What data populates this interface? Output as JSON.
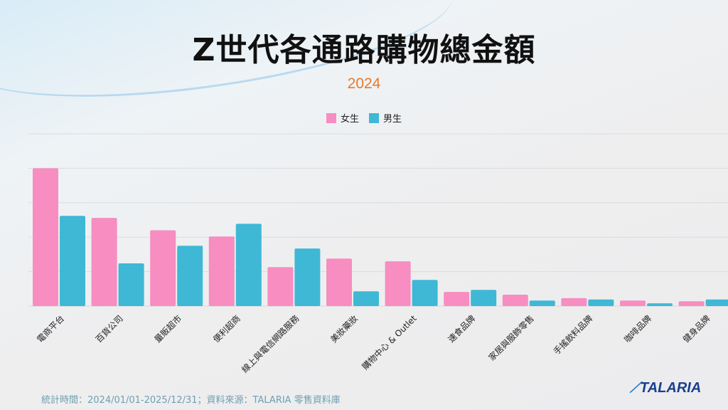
{
  "chart_data": {
    "type": "bar",
    "title": "Z世代各通路購物總金額",
    "subtitle": "2024",
    "categories": [
      "電商平台",
      "百貨公司",
      "量販超市",
      "便利超商",
      "線上與電信網路服務",
      "美妝藥妝",
      "購物中心 & Outlet",
      "速食品牌",
      "家居與服飾零售",
      "手搖飲料品牌",
      "咖啡品牌",
      "健身品牌"
    ],
    "series": [
      {
        "name": "女生",
        "color": "#f78dc1",
        "values": [
          4.0,
          2.56,
          2.2,
          2.02,
          1.13,
          1.38,
          1.3,
          0.41,
          0.33,
          0.23,
          0.16,
          0.14
        ]
      },
      {
        "name": "男生",
        "color": "#3fb8d6",
        "values": [
          2.62,
          1.24,
          1.75,
          2.39,
          1.67,
          0.43,
          0.76,
          0.47,
          0.16,
          0.19,
          0.08,
          0.19
        ]
      }
    ],
    "ylim": [
      0,
      5
    ],
    "grid": true,
    "legend": "top-center",
    "xlabel": "",
    "ylabel": ""
  },
  "footer": "統計時間：2024/01/01-2025/12/31；資料來源：TALARIA 零售資料庫",
  "logo": "TALARIA"
}
